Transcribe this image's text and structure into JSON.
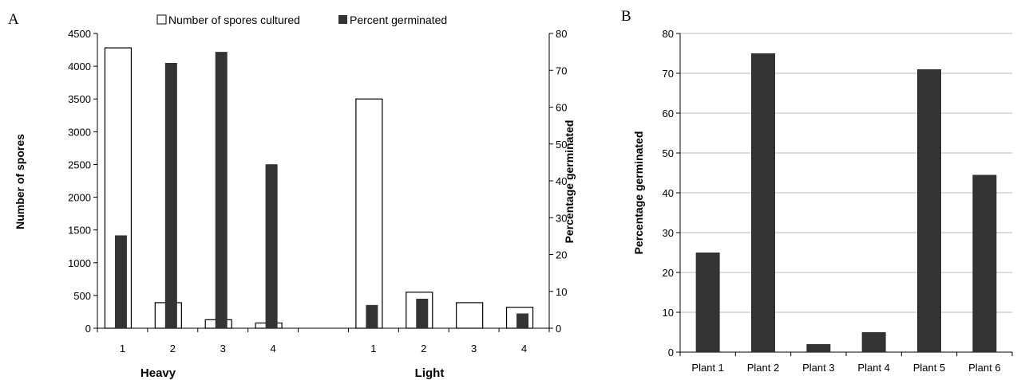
{
  "chart_data": [
    {
      "panel": "A",
      "type": "bar",
      "groups": [
        {
          "label": "Heavy",
          "categories": [
            "1",
            "2",
            "3",
            "4"
          ]
        },
        {
          "label": "Light",
          "categories": [
            "1",
            "2",
            "3",
            "4"
          ]
        }
      ],
      "series": [
        {
          "name": "Number of spores cultured",
          "axis": "left",
          "fill": "#ffffff",
          "stroke": "#000000",
          "values": [
            4280,
            390,
            130,
            80,
            3500,
            550,
            390,
            320
          ]
        },
        {
          "name": "Percent germinated",
          "axis": "right",
          "fill": "#333333",
          "values": [
            25.2,
            72,
            75,
            44.5,
            6.3,
            8,
            0,
            4
          ]
        }
      ],
      "ylabel": "Number of spores",
      "ylim": [
        0,
        4500
      ],
      "yticks": [
        0,
        500,
        1000,
        1500,
        2000,
        2500,
        3000,
        3500,
        4000,
        4500
      ],
      "y2label": "Percentage germinated",
      "y2lim": [
        0,
        80
      ],
      "y2ticks": [
        0,
        10,
        20,
        30,
        40,
        50,
        60,
        70,
        80
      ],
      "grid": false,
      "legend": "top"
    },
    {
      "panel": "B",
      "type": "bar",
      "categories": [
        "Plant 1",
        "Plant 2",
        "Plant 3",
        "Plant 4",
        "Plant 5",
        "Plant 6"
      ],
      "values": [
        25,
        75,
        2,
        5,
        71,
        44.5
      ],
      "color": "#333333",
      "ylabel": "Percentage germinated",
      "ylim": [
        0,
        80
      ],
      "yticks": [
        0,
        10,
        20,
        30,
        40,
        50,
        60,
        70,
        80
      ],
      "grid": true
    }
  ]
}
